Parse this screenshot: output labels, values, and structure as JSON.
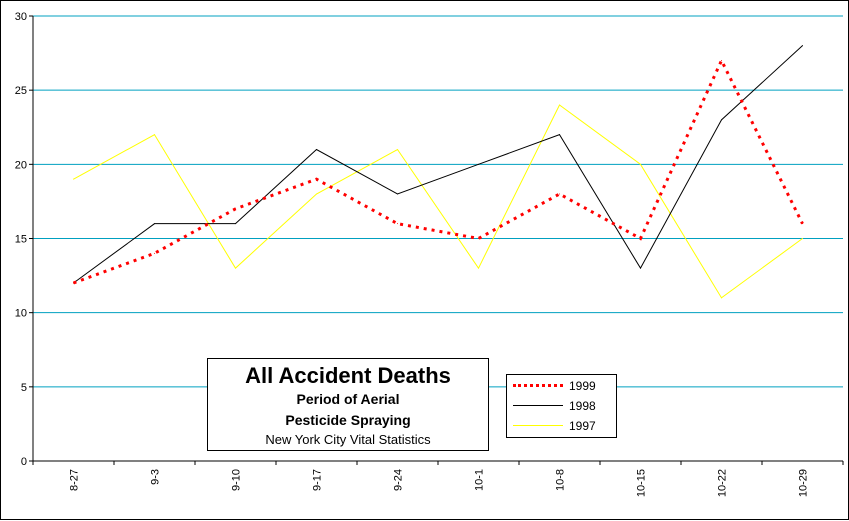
{
  "chart_data": {
    "type": "line",
    "categories": [
      "8-27",
      "9-3",
      "9-10",
      "9-17",
      "9-24",
      "10-1",
      "10-8",
      "10-15",
      "10-22",
      "10-29"
    ],
    "series": [
      {
        "name": "1999",
        "values": [
          12,
          14,
          17,
          19,
          16,
          15,
          18,
          15,
          27,
          16
        ],
        "color": "#ff0000",
        "style": "dotted"
      },
      {
        "name": "1998",
        "values": [
          12,
          16,
          16,
          21,
          18,
          20,
          22,
          13,
          23,
          28
        ],
        "color": "#000000",
        "style": "solid"
      },
      {
        "name": "1997",
        "values": [
          19,
          22,
          13,
          18,
          21,
          13,
          24,
          20,
          11,
          15
        ],
        "color": "#ffff00",
        "style": "solid"
      }
    ],
    "ylim": [
      0,
      30
    ],
    "yticks": [
      0,
      5,
      10,
      15,
      20,
      25,
      30
    ],
    "gridlines": {
      "horizontal": true,
      "color": "#00a0c0"
    },
    "legend_position": "bottom-center",
    "title_lines": [
      "All Accident Deaths",
      "Period of Aerial",
      "Pesticide Spraying",
      "New York City Vital Statistics"
    ]
  }
}
